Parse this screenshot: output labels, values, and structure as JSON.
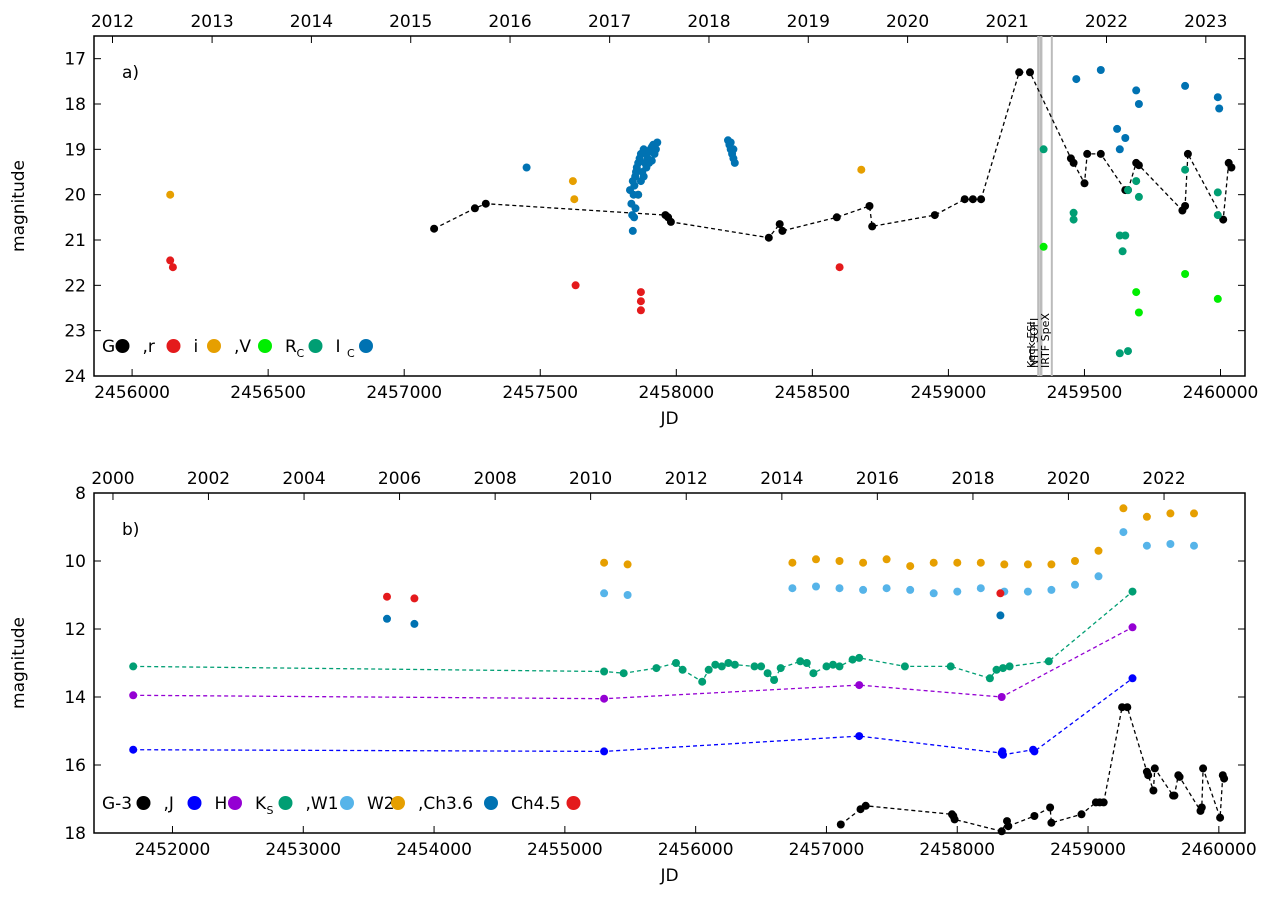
{
  "chart_data": [
    {
      "panel": "a)",
      "type": "scatter",
      "xlabel": "JD",
      "ylabel": "magnitude",
      "xlim": [
        2455860,
        2460090
      ],
      "ylim": [
        24,
        16.5
      ],
      "y_inverted": true,
      "xticks": [
        2456000,
        2456500,
        2457000,
        2457500,
        2458000,
        2458500,
        2459000,
        2459500,
        2460000
      ],
      "xtick_labels": [
        "2456000",
        "2456500",
        "2457000",
        "2457500",
        "2458000",
        "2458500",
        "2459000",
        "2459500",
        "2460000"
      ],
      "yticks": [
        17,
        18,
        19,
        20,
        21,
        22,
        23,
        24
      ],
      "ytick_labels": [
        "17",
        "18",
        "19",
        "20",
        "21",
        "22",
        "23",
        "24"
      ],
      "top_axis": {
        "labels": [
          "2012",
          "2013",
          "2014",
          "2015",
          "2016",
          "2017",
          "2018",
          "2019",
          "2020",
          "2021",
          "2022",
          "2023"
        ],
        "jd": [
          2455928,
          2456294,
          2456659,
          2457024,
          2457389,
          2457755,
          2458120,
          2458485,
          2458850,
          2459216,
          2459581,
          2459946
        ]
      },
      "vlines": [
        {
          "x": 2459330,
          "label": "Keck ESI",
          "width": 1
        },
        {
          "x": 2459340,
          "label": "NTT SOFI",
          "width": 2
        },
        {
          "x": 2459380,
          "label": "IRTF SpeX",
          "width": 1
        }
      ],
      "legend": [
        {
          "text": "G",
          "color": "#000000"
        },
        {
          "text": ",r",
          "color": "#e41a1c"
        },
        {
          "text": "i",
          "color": "#e69f00"
        },
        {
          "text": ",V",
          "color": "#00ee00"
        },
        {
          "text": "R",
          "sub": "C",
          "color": "#009e73"
        },
        {
          "text": "I",
          "sub": "C",
          "color": "#0072b2"
        }
      ],
      "series": [
        {
          "name": "G",
          "color": "#000000",
          "connect": true,
          "x": [
            2457110,
            2457260,
            2457300,
            2457960,
            2457970,
            2457980,
            2458340,
            2458380,
            2458390,
            2458590,
            2458710,
            2458720,
            2458950,
            2459060,
            2459090,
            2459120,
            2459260,
            2459300,
            2459450,
            2459460,
            2459500,
            2459510,
            2459560,
            2459650,
            2459660,
            2459690,
            2459700,
            2459860,
            2459870,
            2459880,
            2460010,
            2460030,
            2460040
          ],
          "y": [
            20.75,
            20.3,
            20.2,
            20.45,
            20.5,
            20.6,
            20.95,
            20.65,
            20.8,
            20.5,
            20.25,
            20.7,
            20.45,
            20.1,
            20.1,
            20.1,
            17.3,
            17.3,
            19.2,
            19.3,
            19.75,
            19.1,
            19.1,
            19.9,
            19.9,
            19.3,
            19.35,
            20.35,
            20.25,
            19.1,
            20.55,
            19.3,
            19.4
          ]
        },
        {
          "name": "r",
          "color": "#e41a1c",
          "x": [
            2456140,
            2456150,
            2457630,
            2457870,
            2457870,
            2457870,
            2458600
          ],
          "y": [
            21.45,
            21.6,
            22.0,
            22.15,
            22.35,
            22.55,
            21.6
          ]
        },
        {
          "name": "i",
          "color": "#e69f00",
          "x": [
            2456140,
            2457620,
            2457625,
            2457860,
            2458680
          ],
          "y": [
            20.0,
            19.7,
            20.1,
            20.0,
            19.45
          ]
        },
        {
          "name": "V",
          "color": "#00ee00",
          "x": [
            2459350,
            2459690,
            2459700,
            2459870,
            2459990
          ],
          "y": [
            21.15,
            22.15,
            22.6,
            21.75,
            22.3
          ]
        },
        {
          "name": "R_C",
          "color": "#009e73",
          "x": [
            2459350,
            2459460,
            2459460,
            2459630,
            2459640,
            2459650,
            2459660,
            2459690,
            2459700,
            2459870,
            2459990,
            2459990,
            2459630,
            2459660
          ],
          "y": [
            19.0,
            20.4,
            20.55,
            20.9,
            21.25,
            20.9,
            19.9,
            19.7,
            20.05,
            19.45,
            19.95,
            20.45,
            23.5,
            23.45
          ]
        },
        {
          "name": "I_C",
          "color": "#0072b2",
          "x": [
            2457450,
            2457830,
            2457835,
            2457838,
            2457840,
            2457843,
            2457846,
            2457849,
            2457852,
            2457855,
            2457860,
            2457865,
            2457870,
            2457875,
            2457880,
            2457885,
            2457890,
            2457895,
            2457900,
            2457905,
            2457910,
            2457915,
            2457920,
            2457925,
            2457930,
            2457850,
            2457860,
            2457870,
            2457880,
            2457890,
            2457900,
            2457910,
            2457920,
            2457840,
            2457845,
            2458190,
            2458195,
            2458200,
            2458205,
            2458210,
            2458215,
            2458200,
            2458210,
            2459470,
            2459560,
            2459620,
            2459630,
            2459650,
            2459690,
            2459700,
            2459870,
            2459990,
            2459995
          ],
          "y": [
            19.4,
            19.9,
            20.2,
            20.45,
            20.8,
            20.0,
            19.8,
            19.6,
            19.5,
            19.4,
            19.3,
            19.2,
            19.1,
            19.5,
            19.0,
            19.3,
            19.1,
            19.2,
            19.05,
            19.0,
            18.95,
            18.9,
            18.9,
            19.0,
            18.85,
            20.3,
            20.0,
            19.7,
            19.6,
            19.4,
            19.3,
            19.25,
            19.1,
            19.7,
            20.5,
            18.8,
            18.9,
            19.0,
            19.1,
            19.2,
            19.3,
            18.85,
            19.0,
            17.45,
            17.25,
            18.55,
            19.0,
            18.75,
            17.7,
            18.0,
            17.6,
            17.85,
            18.1
          ]
        }
      ]
    },
    {
      "panel": "b)",
      "type": "scatter",
      "xlabel": "JD",
      "ylabel": "magnitude",
      "xlim": [
        2451400,
        2460200
      ],
      "ylim": [
        18,
        8
      ],
      "y_inverted": true,
      "xticks": [
        2452000,
        2453000,
        2454000,
        2455000,
        2456000,
        2457000,
        2458000,
        2459000,
        2460000
      ],
      "xtick_labels": [
        "2452000",
        "2453000",
        "2454000",
        "2455000",
        "2456000",
        "2457000",
        "2458000",
        "2459000",
        "2460000"
      ],
      "yticks": [
        8,
        10,
        12,
        14,
        16,
        18
      ],
      "ytick_labels": [
        "8",
        "10",
        "12",
        "14",
        "16",
        "18"
      ],
      "top_axis": {
        "labels": [
          "2000",
          "2002",
          "2004",
          "2006",
          "2008",
          "2010",
          "2012",
          "2014",
          "2016",
          "2018",
          "2020",
          "2022"
        ],
        "jd": [
          2451545,
          2452275,
          2453006,
          2453736,
          2454467,
          2455197,
          2455928,
          2456659,
          2457389,
          2458120,
          2458850,
          2459581
        ]
      },
      "legend": [
        {
          "text": "G-3",
          "color": "#000000"
        },
        {
          "text": ",J",
          "color": "#0000ff"
        },
        {
          "text": "H",
          "color": "#9400d3"
        },
        {
          "text": "K",
          "sub": "S",
          "color": "#009e73"
        },
        {
          "text": ",W1",
          "color": "#56b4e9"
        },
        {
          "text": "W2",
          "color": "#e69f00"
        },
        {
          "text": ",Ch3.6",
          "color": "#0072b2"
        },
        {
          "text": "Ch4.5",
          "color": "#e41a1c"
        }
      ],
      "series": [
        {
          "name": "G-3",
          "color": "#000000",
          "connect": true,
          "x": [
            2457110,
            2457260,
            2457300,
            2457960,
            2457970,
            2457980,
            2458340,
            2458380,
            2458390,
            2458590,
            2458710,
            2458720,
            2458950,
            2459060,
            2459090,
            2459120,
            2459260,
            2459300,
            2459450,
            2459460,
            2459500,
            2459510,
            2459650,
            2459660,
            2459690,
            2459700,
            2459860,
            2459870,
            2459880,
            2460010,
            2460030,
            2460040
          ],
          "y": [
            17.75,
            17.3,
            17.2,
            17.45,
            17.5,
            17.6,
            17.95,
            17.65,
            17.8,
            17.5,
            17.25,
            17.7,
            17.45,
            17.1,
            17.1,
            17.1,
            14.3,
            14.3,
            16.2,
            16.3,
            16.75,
            16.1,
            16.9,
            16.9,
            16.3,
            16.35,
            17.35,
            17.25,
            16.1,
            17.55,
            16.3,
            16.4
          ]
        },
        {
          "name": "J",
          "color": "#0000ff",
          "connect": true,
          "x": [
            2451700,
            2455300,
            2457250,
            2458340,
            2458345,
            2458350,
            2458580,
            2458590,
            2459340
          ],
          "y": [
            15.55,
            15.6,
            15.15,
            15.65,
            15.6,
            15.7,
            15.55,
            15.6,
            13.45
          ]
        },
        {
          "name": "H",
          "color": "#9400d3",
          "connect": true,
          "x": [
            2451700,
            2455300,
            2457250,
            2458340,
            2459340
          ],
          "y": [
            13.95,
            14.05,
            13.65,
            14.0,
            11.95
          ]
        },
        {
          "name": "K_S",
          "color": "#009e73",
          "connect": true,
          "x": [
            2451700,
            2455300,
            2455450,
            2455700,
            2455850,
            2455900,
            2456050,
            2456100,
            2456150,
            2456200,
            2456250,
            2456300,
            2456450,
            2456500,
            2456550,
            2456600,
            2456650,
            2456800,
            2456850,
            2456900,
            2457000,
            2457050,
            2457100,
            2457200,
            2457250,
            2457600,
            2457950,
            2458250,
            2458300,
            2458350,
            2458400,
            2458700,
            2459340
          ],
          "y": [
            13.1,
            13.25,
            13.3,
            13.15,
            13.0,
            13.2,
            13.55,
            13.2,
            13.05,
            13.1,
            13.0,
            13.05,
            13.1,
            13.1,
            13.3,
            13.5,
            13.15,
            12.95,
            13.0,
            13.3,
            13.1,
            13.05,
            13.1,
            12.9,
            12.85,
            13.1,
            13.1,
            13.45,
            13.2,
            13.15,
            13.1,
            12.95,
            10.9
          ]
        },
        {
          "name": "W1",
          "color": "#56b4e9",
          "x": [
            2455300,
            2455480,
            2456740,
            2456920,
            2457100,
            2457280,
            2457460,
            2457640,
            2457820,
            2458000,
            2458180,
            2458360,
            2458540,
            2458720,
            2458900,
            2459080,
            2459270,
            2459450,
            2459630,
            2459810
          ],
          "y": [
            10.95,
            11.0,
            10.8,
            10.75,
            10.8,
            10.85,
            10.8,
            10.85,
            10.95,
            10.9,
            10.8,
            10.9,
            10.9,
            10.85,
            10.7,
            10.45,
            9.15,
            9.55,
            9.5,
            9.55
          ]
        },
        {
          "name": "W2",
          "color": "#e69f00",
          "x": [
            2455300,
            2455480,
            2456740,
            2456920,
            2457100,
            2457280,
            2457460,
            2457640,
            2457820,
            2458000,
            2458180,
            2458360,
            2458540,
            2458720,
            2458900,
            2459080,
            2459270,
            2459450,
            2459630,
            2459810
          ],
          "y": [
            10.05,
            10.1,
            10.05,
            9.95,
            10.0,
            10.05,
            9.95,
            10.15,
            10.05,
            10.05,
            10.05,
            10.1,
            10.1,
            10.1,
            10.0,
            9.7,
            8.45,
            8.7,
            8.6,
            8.6
          ]
        },
        {
          "name": "Ch3.6",
          "color": "#0072b2",
          "x": [
            2453640,
            2453850,
            2458330
          ],
          "y": [
            11.7,
            11.85,
            11.6
          ]
        },
        {
          "name": "Ch4.5",
          "color": "#e41a1c",
          "x": [
            2453640,
            2453850,
            2458330
          ],
          "y": [
            11.05,
            11.1,
            10.95
          ]
        }
      ]
    }
  ]
}
